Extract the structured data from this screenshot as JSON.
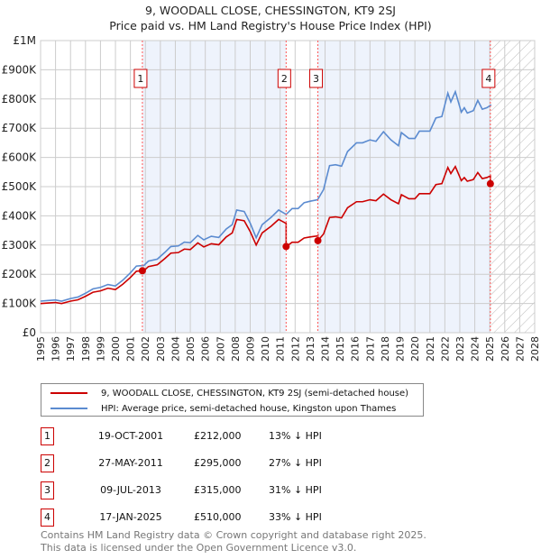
{
  "title_line1": "9, WOODALL CLOSE, CHESSINGTON, KT9 2SJ",
  "title_line2": "Price paid vs. HM Land Registry's House Price Index (HPI)",
  "legend": {
    "property": "9, WOODALL CLOSE, CHESSINGTON, KT9 2SJ (semi-detached house)",
    "hpi": "HPI: Average price, semi-detached house, Kingston upon Thames"
  },
  "colors": {
    "property": "#cc0000",
    "hpi": "#5b8bd0",
    "shade": "#eef3fc",
    "grid": "#cccccc"
  },
  "sales": [
    {
      "n": "1",
      "date": "19-OCT-2001",
      "price": "£212,000",
      "delta": "13% ↓ HPI"
    },
    {
      "n": "2",
      "date": "27-MAY-2011",
      "price": "£295,000",
      "delta": "27% ↓ HPI"
    },
    {
      "n": "3",
      "date": "09-JUL-2013",
      "price": "£315,000",
      "delta": "31% ↓ HPI"
    },
    {
      "n": "4",
      "date": "17-JAN-2025",
      "price": "£510,000",
      "delta": "33% ↓ HPI"
    }
  ],
  "footer": {
    "line1": "Contains HM Land Registry data © Crown copyright and database right 2025.",
    "line2": "This data is licensed under the Open Government Licence v3.0."
  },
  "chart_data": {
    "type": "line",
    "xlim": [
      1995,
      2028
    ],
    "ylim": [
      0,
      1000000
    ],
    "x_ticks": [
      "1995",
      "1996",
      "1997",
      "1998",
      "1999",
      "2000",
      "2001",
      "2002",
      "2003",
      "2004",
      "2005",
      "2006",
      "2007",
      "2008",
      "2009",
      "2010",
      "2011",
      "2012",
      "2013",
      "2014",
      "2015",
      "2016",
      "2017",
      "2018",
      "2019",
      "2020",
      "2021",
      "2022",
      "2023",
      "2024",
      "2025",
      "2026",
      "2027",
      "2028"
    ],
    "y_ticks": [
      {
        "v": 0,
        "label": "£0"
      },
      {
        "v": 100000,
        "label": "£100K"
      },
      {
        "v": 200000,
        "label": "£200K"
      },
      {
        "v": 300000,
        "label": "£300K"
      },
      {
        "v": 400000,
        "label": "£400K"
      },
      {
        "v": 500000,
        "label": "£500K"
      },
      {
        "v": 600000,
        "label": "£600K"
      },
      {
        "v": 700000,
        "label": "£700K"
      },
      {
        "v": 800000,
        "label": "£800K"
      },
      {
        "v": 900000,
        "label": "£900K"
      },
      {
        "v": 1000000,
        "label": "£1M"
      }
    ],
    "grid": true,
    "forecast_hatch_from": 2025.1,
    "sale_points": [
      {
        "label": "1",
        "x": 2001.8,
        "y": 212000
      },
      {
        "label": "2",
        "x": 2011.4,
        "y": 295000
      },
      {
        "label": "3",
        "x": 2013.52,
        "y": 315000
      },
      {
        "label": "4",
        "x": 2025.04,
        "y": 510000
      }
    ],
    "series": [
      {
        "name": "HPI: Average price, semi-detached house, Kingston upon Thames",
        "points": [
          [
            1995,
            108000
          ],
          [
            1995.5,
            110000
          ],
          [
            1996,
            112000
          ],
          [
            1996.4,
            108000
          ],
          [
            1997,
            117000
          ],
          [
            1997.5,
            122000
          ],
          [
            1998,
            135000
          ],
          [
            1998.5,
            150000
          ],
          [
            1999,
            155000
          ],
          [
            1999.5,
            165000
          ],
          [
            2000,
            160000
          ],
          [
            2000.5,
            180000
          ],
          [
            2001,
            205000
          ],
          [
            2001.4,
            228000
          ],
          [
            2001.9,
            230000
          ],
          [
            2002.2,
            245000
          ],
          [
            2002.8,
            252000
          ],
          [
            2003.3,
            275000
          ],
          [
            2003.7,
            295000
          ],
          [
            2004.2,
            297000
          ],
          [
            2004.6,
            310000
          ],
          [
            2005,
            308000
          ],
          [
            2005.5,
            333000
          ],
          [
            2005.9,
            318000
          ],
          [
            2006.4,
            330000
          ],
          [
            2006.9,
            326000
          ],
          [
            2007.4,
            355000
          ],
          [
            2007.8,
            370000
          ],
          [
            2008.1,
            420000
          ],
          [
            2008.6,
            415000
          ],
          [
            2009.0,
            375000
          ],
          [
            2009.4,
            325000
          ],
          [
            2009.8,
            370000
          ],
          [
            2010.4,
            395000
          ],
          [
            2010.9,
            420000
          ],
          [
            2011.4,
            405000
          ],
          [
            2011.8,
            425000
          ],
          [
            2012.2,
            425000
          ],
          [
            2012.6,
            445000
          ],
          [
            2013.0,
            450000
          ],
          [
            2013.5,
            455000
          ],
          [
            2013.9,
            490000
          ],
          [
            2014.3,
            572000
          ],
          [
            2014.7,
            575000
          ],
          [
            2015.1,
            570000
          ],
          [
            2015.5,
            620000
          ],
          [
            2016.1,
            650000
          ],
          [
            2016.5,
            650000
          ],
          [
            2017.0,
            660000
          ],
          [
            2017.4,
            655000
          ],
          [
            2017.9,
            688000
          ],
          [
            2018.4,
            660000
          ],
          [
            2018.9,
            640000
          ],
          [
            2019.1,
            685000
          ],
          [
            2019.6,
            665000
          ],
          [
            2020.0,
            665000
          ],
          [
            2020.3,
            690000
          ],
          [
            2021.0,
            690000
          ],
          [
            2021.4,
            735000
          ],
          [
            2021.8,
            740000
          ],
          [
            2022.2,
            820000
          ],
          [
            2022.4,
            790000
          ],
          [
            2022.7,
            825000
          ],
          [
            2023.1,
            755000
          ],
          [
            2023.3,
            770000
          ],
          [
            2023.5,
            752000
          ],
          [
            2023.9,
            760000
          ],
          [
            2024.2,
            795000
          ],
          [
            2024.5,
            765000
          ],
          [
            2024.8,
            770000
          ],
          [
            2025.1,
            780000
          ]
        ]
      },
      {
        "name": "9, WOODALL CLOSE, CHESSINGTON, KT9 2SJ (semi-detached house)",
        "derived_from": "HPI indexed to each sale price"
      }
    ]
  }
}
